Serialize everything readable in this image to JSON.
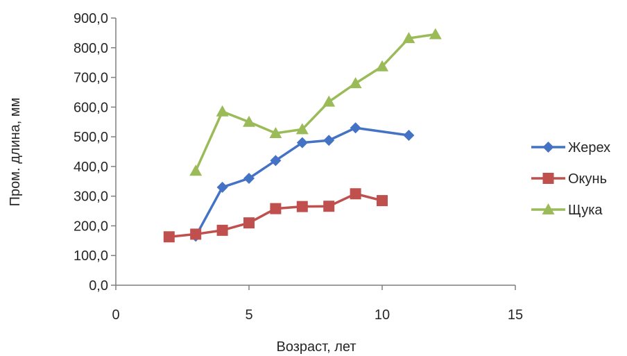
{
  "chart_data": {
    "type": "line",
    "title": "",
    "xlabel": "Возраст, лет",
    "ylabel": "Пром. длина, мм",
    "xlim": [
      0,
      15
    ],
    "ylim": [
      0,
      900
    ],
    "x_ticks": [
      0,
      5,
      10,
      15
    ],
    "y_ticks": [
      0,
      100,
      200,
      300,
      400,
      500,
      600,
      700,
      800,
      900
    ],
    "x_tick_labels": [
      "0",
      "5",
      "10",
      "15"
    ],
    "y_tick_labels": [
      "0,0",
      "100,0",
      "200,0",
      "300,0",
      "400,0",
      "500,0",
      "600,0",
      "700,0",
      "800,0",
      "900,0"
    ],
    "grid": false,
    "legend_position": "right",
    "series": [
      {
        "name": "Жерех",
        "color": "#4472C4",
        "marker": "diamond",
        "x": [
          3,
          4,
          5,
          6,
          7,
          8,
          9,
          11
        ],
        "y": [
          165,
          330,
          360,
          420,
          480,
          488,
          530,
          505
        ]
      },
      {
        "name": "Окунь",
        "color": "#C0504D",
        "marker": "square",
        "x": [
          2,
          3,
          4,
          5,
          6,
          7,
          8,
          9,
          10
        ],
        "y": [
          163,
          172,
          185,
          210,
          258,
          265,
          266,
          308,
          285
        ]
      },
      {
        "name": "Щука",
        "color": "#9BBB59",
        "marker": "triangle",
        "x": [
          3,
          4,
          5,
          6,
          7,
          8,
          9,
          10,
          11,
          12
        ],
        "y": [
          385,
          585,
          550,
          512,
          525,
          618,
          680,
          737,
          832,
          845
        ]
      }
    ]
  }
}
